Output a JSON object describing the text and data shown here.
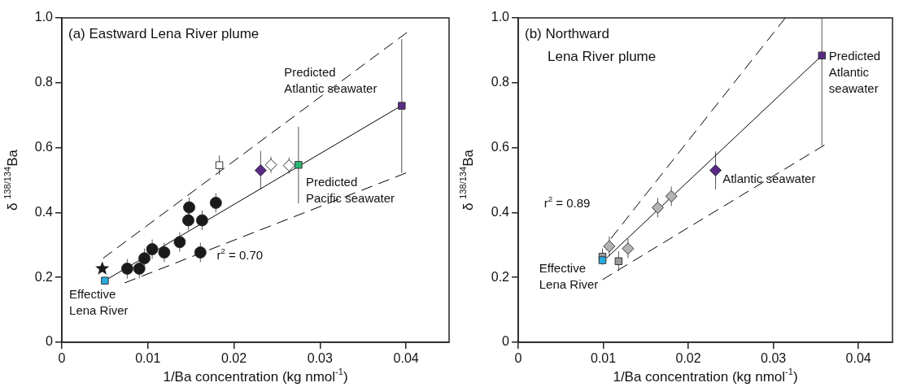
{
  "chart_data": [
    {
      "type": "scatter",
      "title": "(a) Eastward Lena River plume",
      "xlabel": "1/Ba concentration (kg nmol$^{-1}$)",
      "ylabel": "δ $^{138/134}$Ba",
      "xlim": [
        0,
        0.045
      ],
      "ylim": [
        0,
        1
      ],
      "xticks": [
        0,
        0.01,
        0.02,
        0.03,
        0.04
      ],
      "yticks": [
        0,
        0.2,
        0.4,
        0.6,
        0.8,
        {
          "value": 1,
          "label": "1.0"
        }
      ],
      "grid": false,
      "series": [
        {
          "type": "line",
          "x": [
            0.005,
            0.0395
          ],
          "values": [
            0.19,
            0.73
          ],
          "color": "#000000",
          "marker": "none",
          "line_style": "solid"
        },
        {
          "type": "line",
          "x": [
            0.0048,
            0.0401
          ],
          "values": [
            0.259,
            0.955
          ],
          "color": "#000000",
          "marker": "none",
          "line_style": "dashed"
        },
        {
          "type": "line",
          "x": [
            0.0073,
            0.04
          ],
          "values": [
            0.183,
            0.522
          ],
          "color": "#000000",
          "marker": "none",
          "line_style": "dashed"
        },
        {
          "type": "scatter",
          "x": [
            0.0076,
            0.009,
            0.0096,
            0.0105,
            0.0119,
            0.0137,
            0.0148,
            0.0147,
            0.0163,
            0.0161,
            0.0179
          ],
          "values": [
            0.227,
            0.227,
            0.259,
            0.287,
            0.277,
            0.309,
            0.416,
            0.376,
            0.376,
            0.277,
            0.43
          ],
          "errors": [
            0.03,
            0.03,
            0.03,
            0.03,
            0.03,
            0.03,
            0.03,
            0.03,
            0.03,
            0.03,
            0.03
          ],
          "color": "#1a1a1a",
          "marker": "circle"
        },
        {
          "type": "scatter",
          "x": [
            0.0047
          ],
          "values": [
            0.227
          ],
          "color": "#1a1a1a",
          "marker": "star"
        },
        {
          "type": "scatter",
          "x": [
            0.005
          ],
          "values": [
            0.19
          ],
          "color": "#29abe2",
          "marker": "square"
        },
        {
          "type": "scatter",
          "x": [
            0.0183
          ],
          "values": [
            0.546
          ],
          "errors": [
            0.03
          ],
          "color": "#ffffff",
          "marker": "square"
        },
        {
          "type": "scatter",
          "x": [
            0.0231
          ],
          "values": [
            0.53
          ],
          "errors": [
            [
              0.471,
              0.59
            ]
          ],
          "color": "#5b2a86",
          "marker": "diamond"
        },
        {
          "type": "scatter",
          "x": [
            0.0243,
            0.0264
          ],
          "values": [
            0.547,
            0.545
          ],
          "errors": [
            0.025,
            0.025
          ],
          "color": "#ffffff",
          "marker": "diamond"
        },
        {
          "type": "scatter",
          "x": [
            0.0275
          ],
          "values": [
            0.547
          ],
          "errors": [
            [
              0.428,
              0.664
            ]
          ],
          "color": "#2bb673",
          "marker": "square"
        },
        {
          "type": "scatter",
          "x": [
            0.0395
          ],
          "values": [
            0.729
          ],
          "errors": [
            [
              0.522,
              0.935
            ]
          ],
          "color": "#5b2a86",
          "marker": "square"
        }
      ],
      "annotations": [
        "Predicted\nAtlantic seawater",
        "Predicted\nPacific seawater",
        "Effective\nLena River",
        "r$^{2}$ = 0.70"
      ]
    },
    {
      "type": "scatter",
      "title": "(b) Northward\nLena River plume",
      "xlabel": "1/Ba concentration (kg nmol$^{-1}$)",
      "ylabel": "δ $^{138/134}$Ba",
      "xlim": [
        0,
        0.044
      ],
      "ylim": [
        0,
        1
      ],
      "xticks": [
        0,
        0.01,
        0.02,
        0.03,
        0.04
      ],
      "yticks": [
        0,
        0.2,
        0.4,
        0.6,
        0.8,
        {
          "value": 1,
          "label": "1.0"
        }
      ],
      "grid": false,
      "series": [
        {
          "type": "line",
          "x": [
            0.0104,
            0.0357
          ],
          "values": [
            0.26,
            0.884
          ],
          "color": "#000000",
          "marker": "none",
          "line_style": "solid"
        },
        {
          "type": "line",
          "x": [
            0.0109,
            0.0314
          ],
          "values": [
            0.32,
            1.0
          ],
          "color": "#000000",
          "marker": "none",
          "line_style": "dashed"
        },
        {
          "type": "line",
          "x": [
            0.0099,
            0.036
          ],
          "values": [
            0.193,
            0.608
          ],
          "color": "#000000",
          "marker": "none",
          "line_style": "dashed"
        },
        {
          "type": "scatter",
          "x": [
            0.0099,
            0.0118
          ],
          "values": [
            0.264,
            0.25
          ],
          "errors": [
            0.025,
            0.03
          ],
          "color": "#999999",
          "marker": "square"
        },
        {
          "type": "scatter",
          "x": [
            0.0107,
            0.0129,
            0.0164,
            0.018
          ],
          "values": [
            0.296,
            0.289,
            0.415,
            0.45
          ],
          "errors": [
            0.03,
            0.03,
            0.03,
            0.03
          ],
          "color": "#b3b3b3",
          "marker": "diamond"
        },
        {
          "type": "scatter",
          "x": [
            0.0099
          ],
          "values": [
            0.253
          ],
          "color": "#29abe2",
          "marker": "square"
        },
        {
          "type": "scatter",
          "x": [
            0.0232
          ],
          "values": [
            0.53
          ],
          "errors": [
            [
              0.471,
              0.588
            ]
          ],
          "color": "#5b2a86",
          "marker": "diamond"
        },
        {
          "type": "scatter",
          "x": [
            0.0357
          ],
          "values": [
            0.884
          ],
          "errors": [
            [
              0.606,
              1.0
            ]
          ],
          "color": "#5b2a86",
          "marker": "square"
        }
      ],
      "annotations": [
        "Predicted\nAtlantic\nseawater",
        "Atlantic seawater",
        "Effective\nLena River",
        "r$^{2}$ = 0.89"
      ]
    }
  ]
}
